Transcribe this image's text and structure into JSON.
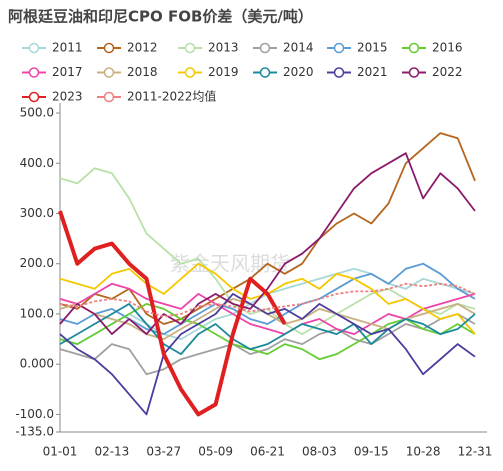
{
  "chart_data": {
    "type": "line",
    "title": "阿根廷豆油和印尼CPO FOB价差（美元/吨）",
    "watermark": "紫金天风期货",
    "categories": [
      "01-01",
      null,
      null,
      "02-13",
      null,
      null,
      "03-27",
      null,
      null,
      "05-09",
      null,
      null,
      "06-21",
      null,
      null,
      "08-03",
      null,
      null,
      "09-15",
      null,
      null,
      "10-28",
      null,
      null,
      "12-31"
    ],
    "ylim": [
      -135,
      520
    ],
    "yticks": [
      {
        "value": 500,
        "label": "500.0"
      },
      {
        "value": 400,
        "label": "400.0"
      },
      {
        "value": 300,
        "label": "300.0"
      },
      {
        "value": 200,
        "label": "200.0"
      },
      {
        "value": 100,
        "label": "100.0"
      },
      {
        "value": 0,
        "label": "0.000"
      },
      {
        "value": -100,
        "label": "-100.0"
      },
      {
        "value": -135,
        "label": "-135.0"
      }
    ],
    "grid": false,
    "series": [
      {
        "name": "2011",
        "color": "#a8d8d8",
        "values": [
          50,
          40,
          60,
          80,
          100,
          80,
          60,
          50,
          70,
          90,
          100,
          120,
          140,
          150,
          160,
          170,
          180,
          190,
          180,
          160,
          150,
          170,
          160,
          150,
          140
        ]
      },
      {
        "name": "2012",
        "color": "#b5651d",
        "values": [
          120,
          110,
          140,
          130,
          150,
          100,
          80,
          90,
          110,
          130,
          150,
          170,
          200,
          180,
          200,
          250,
          280,
          300,
          280,
          320,
          400,
          430,
          460,
          450,
          365
        ]
      },
      {
        "name": "2013",
        "color": "#b8e0a8",
        "values": [
          370,
          360,
          390,
          380,
          330,
          260,
          230,
          200,
          210,
          170,
          120,
          100,
          110,
          80,
          60,
          80,
          100,
          120,
          140,
          150,
          130,
          110,
          100,
          120,
          110
        ]
      },
      {
        "name": "2014",
        "color": "#a0a0a0",
        "values": [
          30,
          20,
          10,
          40,
          30,
          -20,
          -10,
          10,
          20,
          30,
          40,
          20,
          30,
          50,
          40,
          60,
          70,
          50,
          40,
          60,
          80,
          70,
          90,
          100,
          80
        ]
      },
      {
        "name": "2015",
        "color": "#5b9bd5",
        "values": [
          90,
          80,
          100,
          110,
          90,
          70,
          60,
          80,
          100,
          120,
          110,
          90,
          80,
          100,
          120,
          130,
          150,
          170,
          180,
          160,
          190,
          200,
          180,
          150,
          130
        ]
      },
      {
        "name": "2016",
        "color": "#66cc33",
        "values": [
          50,
          40,
          60,
          80,
          100,
          120,
          110,
          90,
          80,
          60,
          40,
          30,
          20,
          40,
          30,
          10,
          20,
          40,
          60,
          80,
          90,
          70,
          60,
          80,
          60
        ]
      },
      {
        "name": "2017",
        "color": "#ee44aa",
        "values": [
          130,
          120,
          140,
          160,
          150,
          130,
          120,
          110,
          140,
          120,
          100,
          80,
          70,
          60,
          80,
          90,
          70,
          60,
          80,
          100,
          90,
          110,
          120,
          130,
          140
        ]
      },
      {
        "name": "2018",
        "color": "#c8b080",
        "values": [
          110,
          120,
          100,
          90,
          80,
          60,
          50,
          70,
          90,
          110,
          130,
          120,
          100,
          80,
          90,
          110,
          100,
          90,
          80,
          70,
          90,
          100,
          110,
          120,
          100
        ]
      },
      {
        "name": "2019",
        "color": "#f5c800",
        "values": [
          170,
          160,
          150,
          180,
          190,
          160,
          140,
          170,
          200,
          180,
          150,
          130,
          140,
          160,
          170,
          150,
          180,
          170,
          150,
          120,
          130,
          110,
          90,
          100,
          60
        ]
      },
      {
        "name": "2020",
        "color": "#1a8a9a",
        "values": [
          40,
          60,
          80,
          100,
          120,
          80,
          40,
          20,
          60,
          80,
          50,
          30,
          40,
          60,
          80,
          70,
          60,
          80,
          40,
          70,
          90,
          80,
          60,
          70,
          100
        ]
      },
      {
        "name": "2021",
        "color": "#4b3c9e",
        "values": [
          60,
          30,
          10,
          -20,
          -60,
          -100,
          20,
          60,
          80,
          100,
          140,
          120,
          100,
          110,
          90,
          120,
          100,
          80,
          60,
          70,
          30,
          -20,
          10,
          40,
          15
        ]
      },
      {
        "name": "2022",
        "color": "#8b1a6b",
        "values": [
          80,
          120,
          100,
          60,
          90,
          60,
          100,
          80,
          120,
          140,
          120,
          110,
          150,
          200,
          220,
          250,
          300,
          350,
          380,
          400,
          420,
          330,
          380,
          350,
          305
        ]
      },
      {
        "name": "2023",
        "color": "#e02020",
        "values": [
          305,
          200,
          230,
          240,
          200,
          170,
          20,
          -50,
          -100,
          -80,
          60,
          170,
          140,
          80,
          null,
          null,
          null,
          null,
          null,
          null,
          null,
          null,
          null,
          null,
          null
        ]
      },
      {
        "name": "2011-2022均值",
        "color": "#f08080",
        "dashed": true,
        "values": [
          120,
          115,
          125,
          130,
          125,
          105,
          95,
          100,
          115,
          120,
          115,
          105,
          110,
          115,
          120,
          130,
          140,
          145,
          145,
          150,
          160,
          155,
          160,
          155,
          140
        ]
      }
    ]
  }
}
